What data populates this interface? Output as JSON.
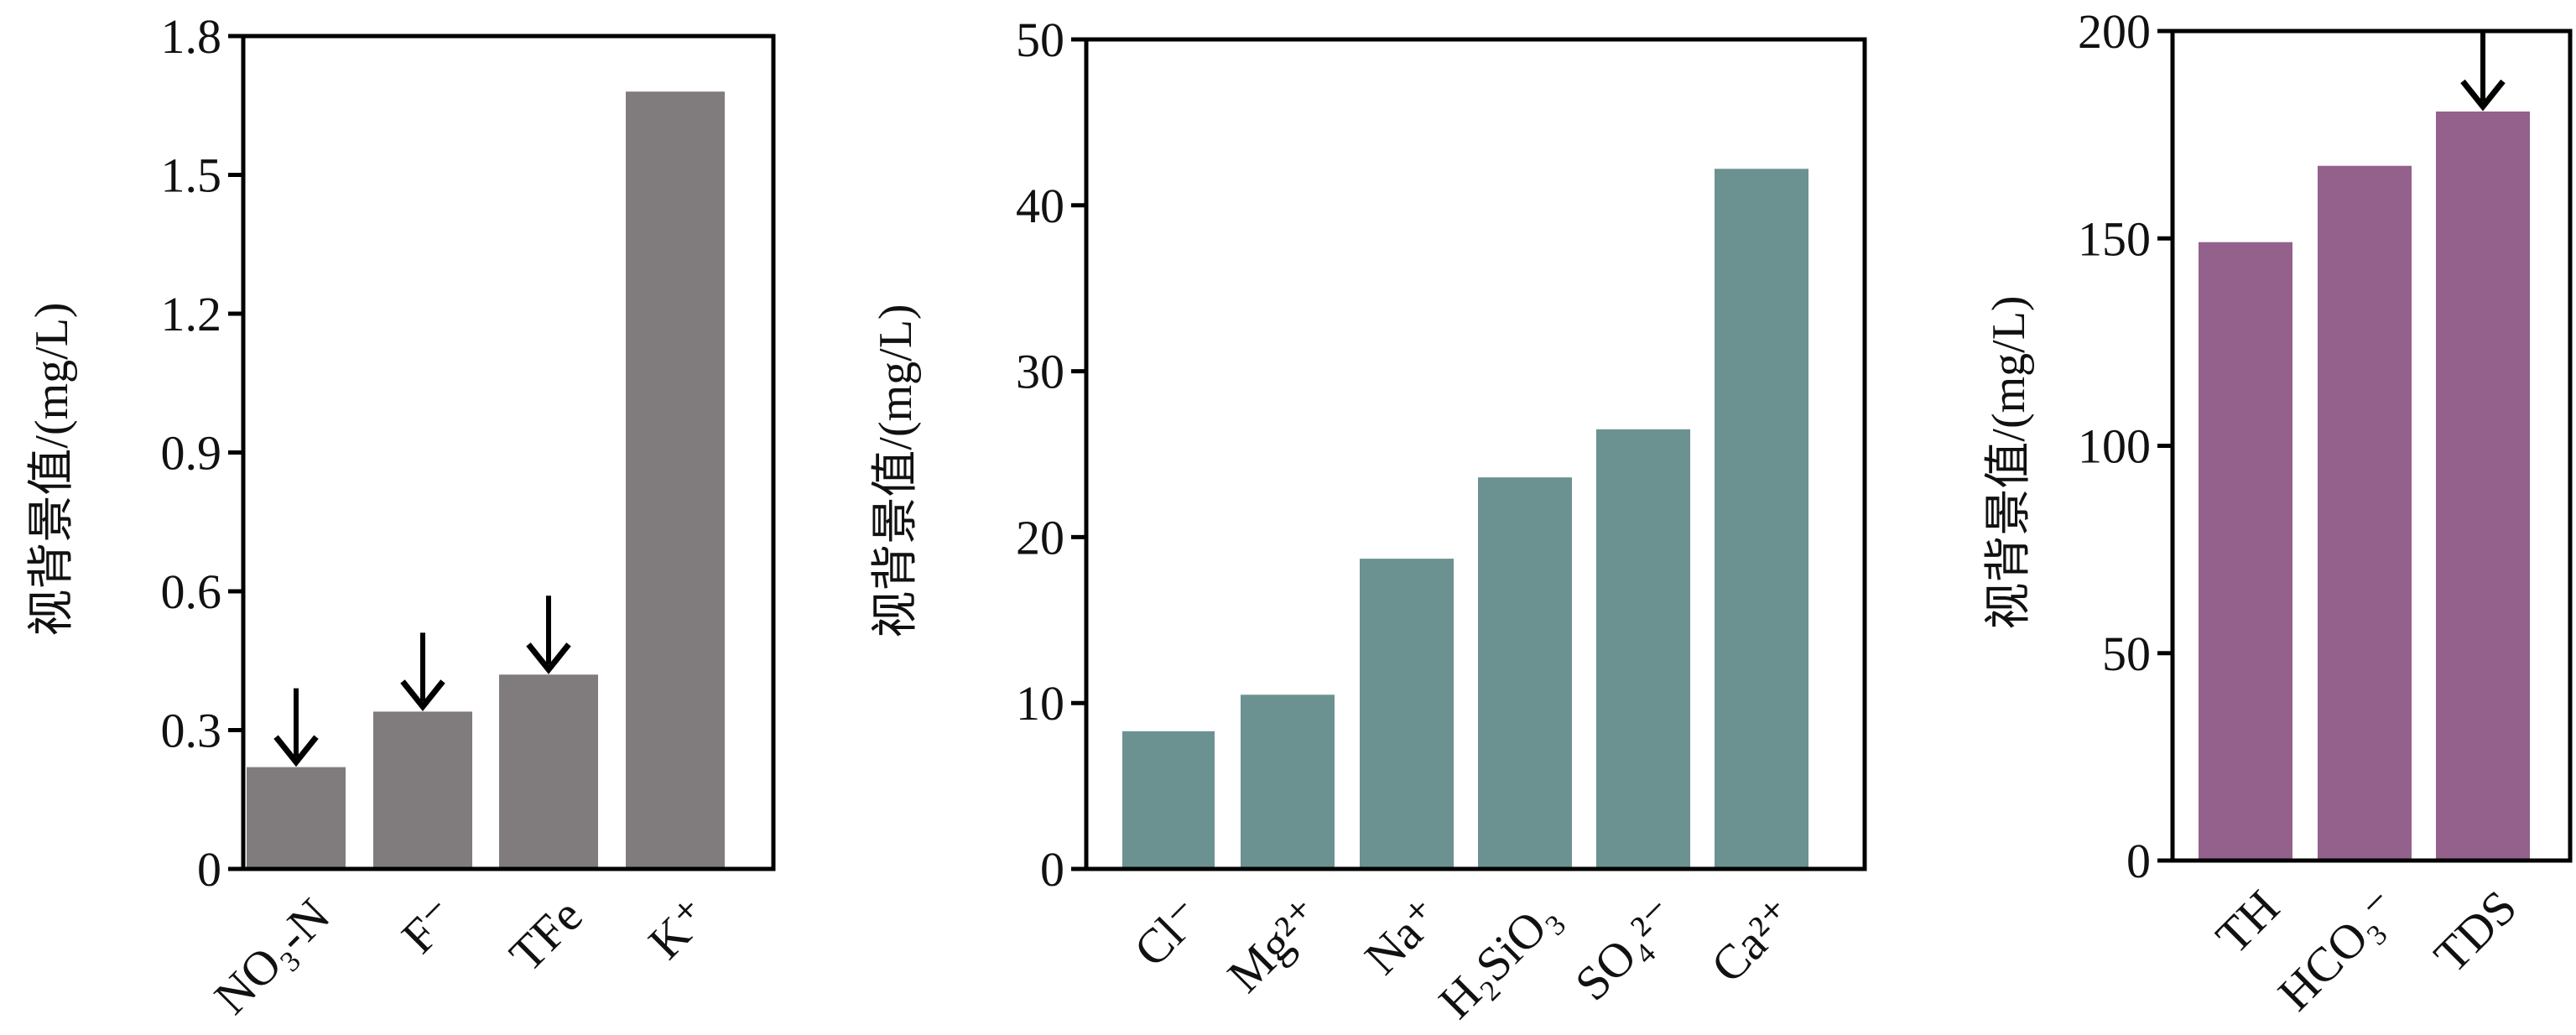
{
  "chart_data": [
    {
      "type": "bar",
      "ylabel": "视背景值/(mg/L)",
      "categories": [
        "NO₃-N",
        "F⁻",
        "TFe",
        "K⁺"
      ],
      "values": [
        0.22,
        0.34,
        0.42,
        1.68
      ],
      "arrows": [
        true,
        true,
        true,
        false
      ],
      "ylim": [
        0,
        1.8
      ],
      "yticks": [
        "0",
        "0.3",
        "0.6",
        "0.9",
        "1.2",
        "1.5",
        "1.8"
      ],
      "color": "#807c7d",
      "grid": false
    },
    {
      "type": "bar",
      "ylabel": "视背景值/(mg/L)",
      "categories": [
        "Cl⁻",
        "Mg²⁺",
        "Na⁺",
        "H₂SiO₃",
        "SO₄²⁻",
        "Ca²⁺"
      ],
      "values": [
        8.3,
        10.5,
        18.7,
        23.6,
        26.5,
        42.2
      ],
      "arrows": [
        false,
        false,
        false,
        false,
        false,
        false
      ],
      "ylim": [
        0,
        50
      ],
      "yticks": [
        "0",
        "10",
        "20",
        "30",
        "40",
        "50"
      ],
      "color": "#6b9291",
      "grid": false
    },
    {
      "type": "bar",
      "ylabel": "视背景值/(mg/L)",
      "categories": [
        "TH",
        "HCO₃⁻",
        "TDS"
      ],
      "values": [
        149.1,
        167.5,
        180.6
      ],
      "arrows": [
        false,
        false,
        true
      ],
      "ylim": [
        0,
        200
      ],
      "yticks": [
        "0",
        "50",
        "100",
        "150",
        "200"
      ],
      "color": "#93618b",
      "grid": false
    }
  ]
}
